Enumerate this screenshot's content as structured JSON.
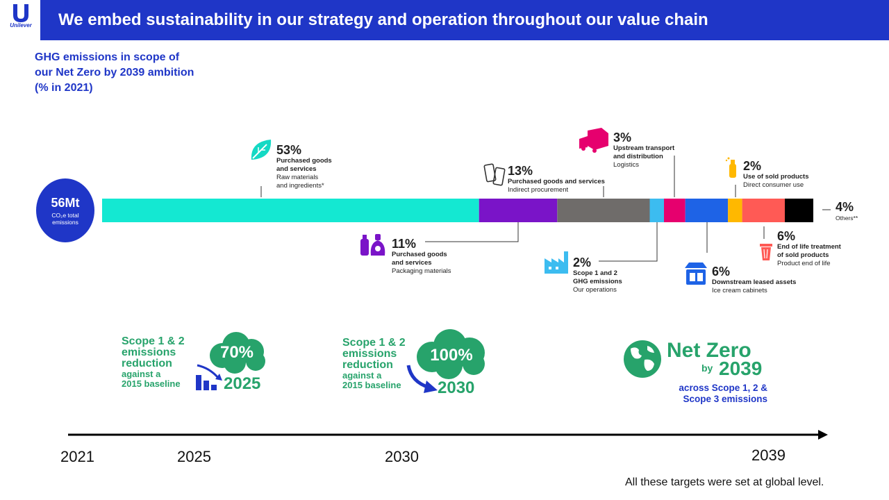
{
  "logo": {
    "text": "Unilever"
  },
  "header": {
    "title": "We embed sustainability in our strategy and operation throughout our value chain"
  },
  "ghg_heading": "GHG emissions in scope of our Net Zero by 2039 ambition (% in 2021)",
  "total": {
    "value": "56Mt",
    "label": "CO₂e total emissions"
  },
  "chart_data": {
    "type": "bar",
    "title": "GHG emissions in scope of our Net Zero by 2039 ambition (% in 2021)",
    "total": "56Mt CO₂e total emissions",
    "segments": [
      {
        "pct": "53%",
        "value": 53,
        "name": "Purchased goods and services",
        "detail": "Raw materials and ingredients*",
        "color": "#14e8d2"
      },
      {
        "pct": "11%",
        "value": 11,
        "name": "Purchased goods and services",
        "detail": "Packaging materials",
        "color": "#7a14c8"
      },
      {
        "pct": "13%",
        "value": 13,
        "name": "Purchased goods and services",
        "detail": "Indirect procurement",
        "color": "#6f6c6a"
      },
      {
        "pct": "2%",
        "value": 2,
        "name": "Scope 1 and 2 GHG emissions",
        "detail": "Our operations",
        "color": "#3cbcf0"
      },
      {
        "pct": "3%",
        "value": 3,
        "name": "Upstream transport and distribution",
        "detail": "Logistics",
        "color": "#e6006e"
      },
      {
        "pct": "6%",
        "value": 6,
        "name": "Downstream leased assets",
        "detail": "Ice cream cabinets",
        "color": "#1e63e6"
      },
      {
        "pct": "2%",
        "value": 2,
        "name": "Use of sold products",
        "detail": "Direct consumer use",
        "color": "#ffb800"
      },
      {
        "pct": "6%",
        "value": 6,
        "name": "End of life treatment of sold products",
        "detail": "Product end of life",
        "color": "#ff5a55"
      },
      {
        "pct": "4%",
        "value": 4,
        "name": "Others**",
        "detail": "",
        "color": "#000000"
      }
    ]
  },
  "callouts": {
    "raw": {
      "pct": "53%",
      "l1": "Purchased goods",
      "l2": "and services",
      "l3a": "Raw materials",
      "l3b": "and ingredients*"
    },
    "packaging": {
      "pct": "11%",
      "l1": "Purchased goods",
      "l2": "and services",
      "l3": "Packaging materials"
    },
    "indirect": {
      "pct": "13%",
      "l1": "Purchased goods and services",
      "l3": "Indirect procurement"
    },
    "ops": {
      "pct": "2%",
      "l1": "Scope 1 and 2",
      "l2": "GHG emissions",
      "l3": "Our operations"
    },
    "logistics": {
      "pct": "3%",
      "l1": "Upstream transport",
      "l2": "and distribution",
      "l3": "Logistics"
    },
    "cabinets": {
      "pct": "6%",
      "l1": "Downstream leased assets",
      "l3": "Ice cream cabinets"
    },
    "consumer": {
      "pct": "2%",
      "l1": "Use of sold products",
      "l3": "Direct consumer use"
    },
    "eol": {
      "pct": "6%",
      "l1": "End of life treatment",
      "l2": "of sold products",
      "l3": "Product end of life"
    },
    "others": {
      "pct": "4%",
      "l1": "Others**"
    }
  },
  "targets": {
    "t2025": {
      "l1": "Scope 1 & 2",
      "l2": "emissions",
      "l3": "reduction",
      "l4": "against a",
      "l5": "2015 baseline",
      "pct": "70%",
      "year": "2025"
    },
    "t2030": {
      "l1": "Scope 1 & 2",
      "l2": "emissions",
      "l3": "reduction",
      "l4": "against a",
      "l5": "2015 baseline",
      "pct": "100%",
      "year": "2030"
    },
    "net_zero": {
      "title": "Net Zero",
      "by": "by",
      "year": "2039",
      "sub1": "across Scope 1, 2 &",
      "sub2": "Scope 3 emissions"
    }
  },
  "timeline": {
    "years": [
      "2021",
      "2025",
      "2030",
      "2039"
    ]
  },
  "footnote": "All these targets were set at global level.",
  "colors": {
    "brand_blue": "#1f36c7",
    "green": "#27a36b"
  }
}
